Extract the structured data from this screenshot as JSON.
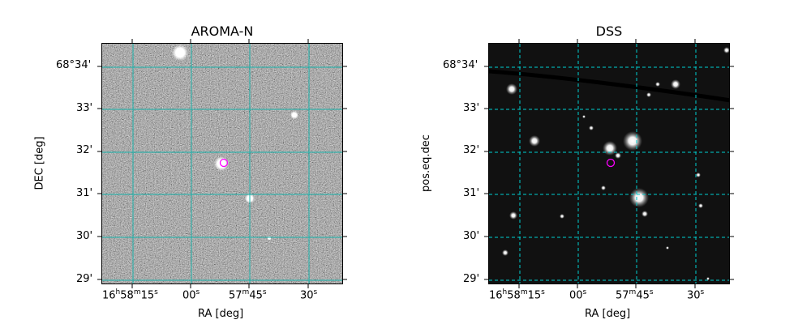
{
  "panels": [
    {
      "title": "AROMA-N",
      "xlabel": "RA [deg]",
      "ylabel": "DEC [deg]",
      "background": "grey-noise",
      "grid_color": "#20b2aa",
      "grid_style": "solid",
      "marker_color": "#ff00ff"
    },
    {
      "title": "DSS",
      "xlabel": "RA [deg]",
      "ylabel": "pos.eq.dec",
      "background": "dark-sky",
      "grid_color": "#00ced1",
      "grid_style": "dashed",
      "marker_color": "#ff00ff"
    }
  ],
  "y_ticks": [
    "68°34'",
    "33'",
    "32'",
    "31'",
    "30'",
    "29'"
  ],
  "x_ticks": [
    {
      "h": "16",
      "hs": "h",
      "m": "58",
      "ms": "m",
      "s": "15",
      "ss": "s"
    },
    {
      "s": "00",
      "ss": "s"
    },
    {
      "m": "57",
      "ms": "m",
      "s": "45",
      "ss": "s"
    },
    {
      "s": "30",
      "ss": "s"
    }
  ]
}
